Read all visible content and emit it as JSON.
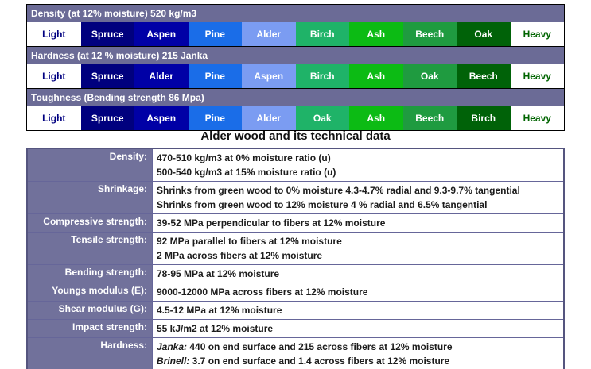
{
  "page_title": "Alder wood and its technical data",
  "colors": {
    "scale_header_bg": "#6b6b96",
    "scale_header_text": "#ffffff",
    "label_bg": "#71719b",
    "label_text": "#ffffff",
    "table_border": "#666699",
    "value_text": "#1c1c1c",
    "section_border": "#000000"
  },
  "position_colors": [
    {
      "bg": "#ffffff",
      "fg": "#000080"
    },
    {
      "bg": "#00007e",
      "fg": "#ffffff"
    },
    {
      "bg": "#0000a6",
      "fg": "#ffffff"
    },
    {
      "bg": "#1a6de8",
      "fg": "#ffffff"
    },
    {
      "bg": "#7b9cf2",
      "fg": "#ffffff"
    },
    {
      "bg": "#1fb368",
      "fg": "#ffffff"
    },
    {
      "bg": "#0cbb14",
      "fg": "#ffffff"
    },
    {
      "bg": "#1f9b40",
      "fg": "#ffffff"
    },
    {
      "bg": "#006208",
      "fg": "#ffffff"
    },
    {
      "bg": "#ffffff",
      "fg": "#006400"
    }
  ],
  "scales": [
    {
      "title": "Density (at 12% moisture) 520 kg/m3",
      "cells": [
        "Light",
        "Spruce",
        "Aspen",
        "Pine",
        "Alder",
        "Birch",
        "Ash",
        "Beech",
        "Oak",
        "Heavy"
      ]
    },
    {
      "title": "Hardness (at 12 % moisture) 215 Janka",
      "cells": [
        "Light",
        "Spruce",
        "Alder",
        "Pine",
        "Aspen",
        "Birch",
        "Ash",
        "Oak",
        "Beech",
        "Heavy"
      ]
    },
    {
      "title": "Toughness (Bending strength 86 Mpa)",
      "cells": [
        "Light",
        "Spruce",
        "Aspen",
        "Pine",
        "Alder",
        "Oak",
        "Ash",
        "Beech",
        "Birch",
        "Heavy"
      ]
    }
  ],
  "table": {
    "rows": [
      {
        "label": "Density:",
        "lines": [
          {
            "prefix": "",
            "text": "470-510 kg/m3 at 0% moisture ratio (u)"
          },
          {
            "prefix": "",
            "text": "500-540 kg/m3 at 15% moisture ratio (u)"
          }
        ]
      },
      {
        "label": "Shrinkage:",
        "lines": [
          {
            "prefix": "",
            "text": "Shrinks from green wood to 0% moisture 4.3-4.7% radial and 9.3-9.7% tangential"
          },
          {
            "prefix": "",
            "text": "Shrinks from green wood to 12% moisture 4 % radial and 6.5% tangential"
          }
        ]
      },
      {
        "label": "Compressive strength:",
        "lines": [
          {
            "prefix": "",
            "text": "39-52 MPa perpendicular to fibers at 12% moisture"
          }
        ]
      },
      {
        "label": "Tensile strength:",
        "lines": [
          {
            "prefix": "",
            "text": "92 MPa parallel to fibers at 12% moisture"
          },
          {
            "prefix": "",
            "text": "2 MPa across fibers at 12% moisture"
          }
        ]
      },
      {
        "label": "Bending strength:",
        "lines": [
          {
            "prefix": "",
            "text": "78-95 MPa at 12% moisture"
          }
        ]
      },
      {
        "label": "Youngs modulus (E):",
        "lines": [
          {
            "prefix": "",
            "text": "9000-12000 MPa across fibers at 12% moisture"
          }
        ]
      },
      {
        "label": "Shear modulus (G):",
        "lines": [
          {
            "prefix": "",
            "text": "4.5-12 MPa at 12% moisture"
          }
        ]
      },
      {
        "label": "Impact strength:",
        "lines": [
          {
            "prefix": "",
            "text": "55 kJ/m2 at 12% moisture"
          }
        ]
      },
      {
        "label": "Hardness:",
        "lines": [
          {
            "prefix": "Janka:",
            "text": " 440 on end surface and 215 across fibers at 12% moisture"
          },
          {
            "prefix": "Brinell:",
            "text": " 3.7 on end surface and 1.4 across fibers at 12% moisture"
          }
        ]
      }
    ]
  }
}
